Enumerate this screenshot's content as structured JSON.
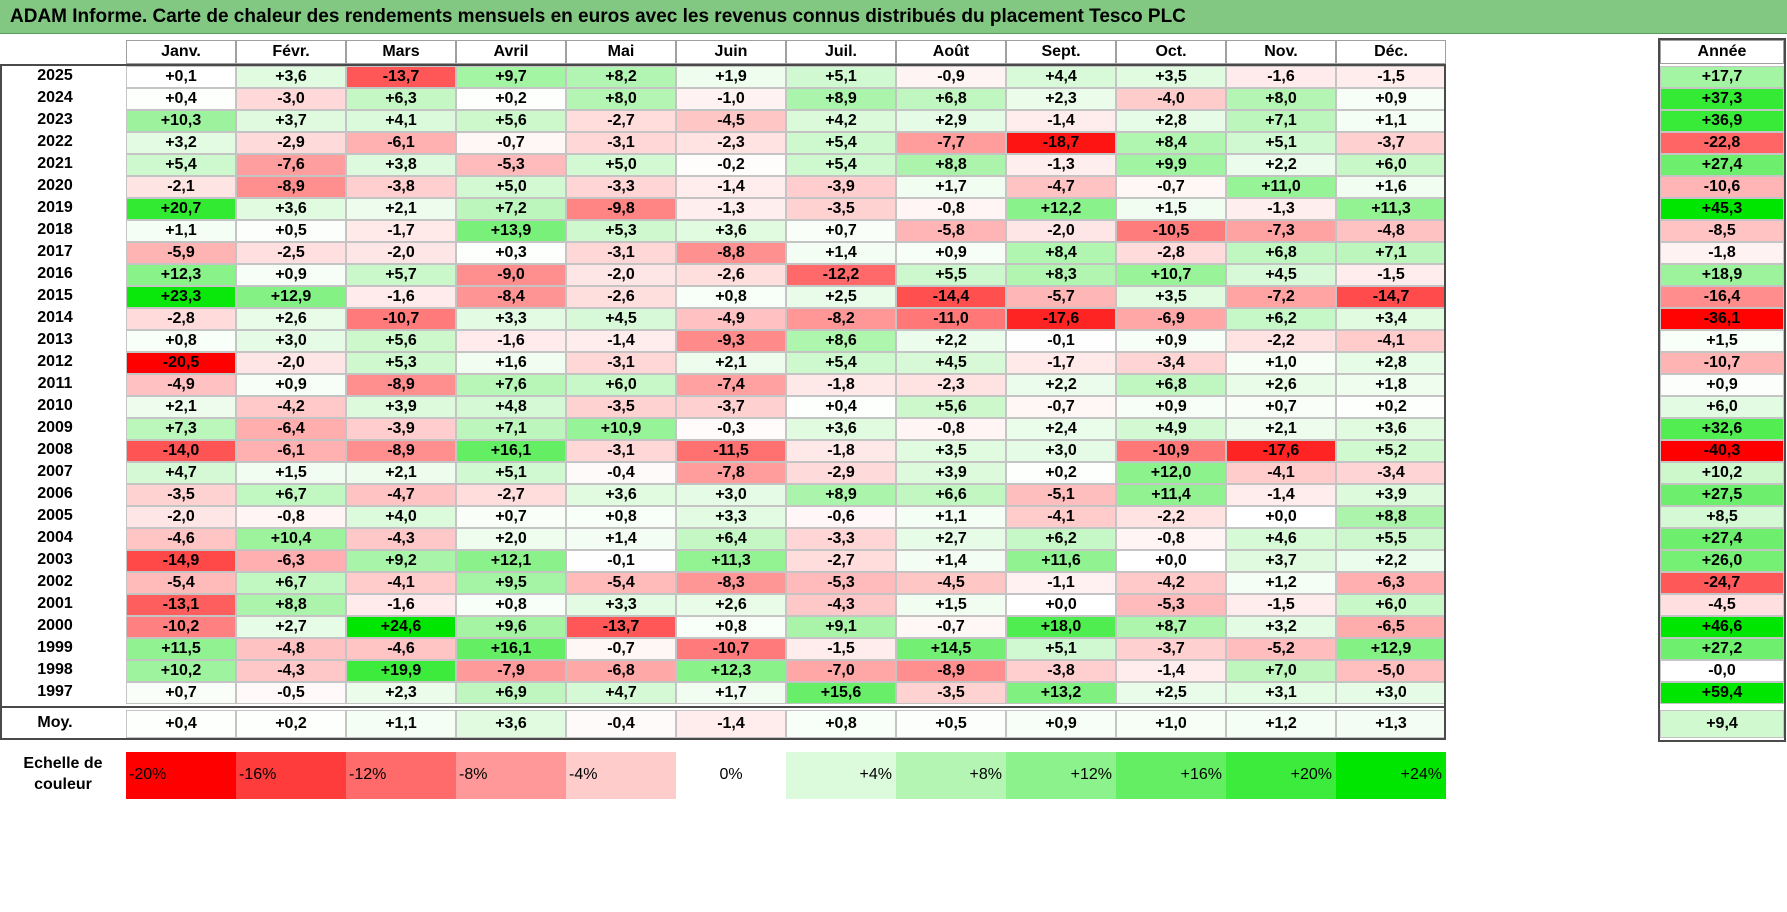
{
  "title": "ADAM Informe. Carte de chaleur des rendements mensuels en euros avec les revenus connus distribués du placement Tesco PLC",
  "chart_data": {
    "type": "heatmap",
    "title": "ADAM Informe. Carte de chaleur des rendements mensuels en euros avec les revenus connus distribués du placement Tesco PLC",
    "columns": [
      "Janv.",
      "Févr.",
      "Mars",
      "Avril",
      "Mai",
      "Juin",
      "Juil.",
      "Août",
      "Sept.",
      "Oct.",
      "Nov.",
      "Déc."
    ],
    "year_header": "Année",
    "rows": [
      {
        "year": "2025",
        "values": [
          "+0,1",
          "+3,6",
          "-13,7",
          "+9,7",
          "+8,2",
          "+1,9",
          "+5,1",
          "-0,9",
          "+4,4",
          "+3,5",
          "-1,6",
          "-1,5"
        ],
        "total": "+17,7"
      },
      {
        "year": "2024",
        "values": [
          "+0,4",
          "-3,0",
          "+6,3",
          "+0,2",
          "+8,0",
          "-1,0",
          "+8,9",
          "+6,8",
          "+2,3",
          "-4,0",
          "+8,0",
          "+0,9"
        ],
        "total": "+37,3"
      },
      {
        "year": "2023",
        "values": [
          "+10,3",
          "+3,7",
          "+4,1",
          "+5,6",
          "-2,7",
          "-4,5",
          "+4,2",
          "+2,9",
          "-1,4",
          "+2,8",
          "+7,1",
          "+1,1"
        ],
        "total": "+36,9"
      },
      {
        "year": "2022",
        "values": [
          "+3,2",
          "-2,9",
          "-6,1",
          "-0,7",
          "-3,1",
          "-2,3",
          "+5,4",
          "-7,7",
          "-18,7",
          "+8,4",
          "+5,1",
          "-3,7"
        ],
        "total": "-22,8"
      },
      {
        "year": "2021",
        "values": [
          "+5,4",
          "-7,6",
          "+3,8",
          "-5,3",
          "+5,0",
          "-0,2",
          "+5,4",
          "+8,8",
          "-1,3",
          "+9,9",
          "+2,2",
          "+6,0"
        ],
        "total": "+27,4"
      },
      {
        "year": "2020",
        "values": [
          "-2,1",
          "-8,9",
          "-3,8",
          "+5,0",
          "-3,3",
          "-1,4",
          "-3,9",
          "+1,7",
          "-4,7",
          "-0,7",
          "+11,0",
          "+1,6"
        ],
        "total": "-10,6"
      },
      {
        "year": "2019",
        "values": [
          "+20,7",
          "+3,6",
          "+2,1",
          "+7,2",
          "-9,8",
          "-1,3",
          "-3,5",
          "-0,8",
          "+12,2",
          "+1,5",
          "-1,3",
          "+11,3"
        ],
        "total": "+45,3"
      },
      {
        "year": "2018",
        "values": [
          "+1,1",
          "+0,5",
          "-1,7",
          "+13,9",
          "+5,3",
          "+3,6",
          "+0,7",
          "-5,8",
          "-2,0",
          "-10,5",
          "-7,3",
          "-4,8"
        ],
        "total": "-8,5"
      },
      {
        "year": "2017",
        "values": [
          "-5,9",
          "-2,5",
          "-2,0",
          "+0,3",
          "-3,1",
          "-8,8",
          "+1,4",
          "+0,9",
          "+8,4",
          "-2,8",
          "+6,8",
          "+7,1"
        ],
        "total": "-1,8"
      },
      {
        "year": "2016",
        "values": [
          "+12,3",
          "+0,9",
          "+5,7",
          "-9,0",
          "-2,0",
          "-2,6",
          "-12,2",
          "+5,5",
          "+8,3",
          "+10,7",
          "+4,5",
          "-1,5"
        ],
        "total": "+18,9"
      },
      {
        "year": "2015",
        "values": [
          "+23,3",
          "+12,9",
          "-1,6",
          "-8,4",
          "-2,6",
          "+0,8",
          "+2,5",
          "-14,4",
          "-5,7",
          "+3,5",
          "-7,2",
          "-14,7"
        ],
        "total": "-16,4"
      },
      {
        "year": "2014",
        "values": [
          "-2,8",
          "+2,6",
          "-10,7",
          "+3,3",
          "+4,5",
          "-4,9",
          "-8,2",
          "-11,0",
          "-17,6",
          "-6,9",
          "+6,2",
          "+3,4"
        ],
        "total": "-36,1"
      },
      {
        "year": "2013",
        "values": [
          "+0,8",
          "+3,0",
          "+5,6",
          "-1,6",
          "-1,4",
          "-9,3",
          "+8,6",
          "+2,2",
          "-0,1",
          "+0,9",
          "-2,2",
          "-4,1"
        ],
        "total": "+1,5"
      },
      {
        "year": "2012",
        "values": [
          "-20,5",
          "-2,0",
          "+5,3",
          "+1,6",
          "-3,1",
          "+2,1",
          "+5,4",
          "+4,5",
          "-1,7",
          "-3,4",
          "+1,0",
          "+2,8"
        ],
        "total": "-10,7"
      },
      {
        "year": "2011",
        "values": [
          "-4,9",
          "+0,9",
          "-8,9",
          "+7,6",
          "+6,0",
          "-7,4",
          "-1,8",
          "-2,3",
          "+2,2",
          "+6,8",
          "+2,6",
          "+1,8"
        ],
        "total": "+0,9"
      },
      {
        "year": "2010",
        "values": [
          "+2,1",
          "-4,2",
          "+3,9",
          "+4,8",
          "-3,5",
          "-3,7",
          "+0,4",
          "+5,6",
          "-0,7",
          "+0,9",
          "+0,7",
          "+0,2"
        ],
        "total": "+6,0"
      },
      {
        "year": "2009",
        "values": [
          "+7,3",
          "-6,4",
          "-3,9",
          "+7,1",
          "+10,9",
          "-0,3",
          "+3,6",
          "-0,8",
          "+2,4",
          "+4,9",
          "+2,1",
          "+3,6"
        ],
        "total": "+32,6"
      },
      {
        "year": "2008",
        "values": [
          "-14,0",
          "-6,1",
          "-8,9",
          "+16,1",
          "-3,1",
          "-11,5",
          "-1,8",
          "+3,5",
          "+3,0",
          "-10,9",
          "-17,6",
          "+5,2"
        ],
        "total": "-40,3"
      },
      {
        "year": "2007",
        "values": [
          "+4,7",
          "+1,5",
          "+2,1",
          "+5,1",
          "-0,4",
          "-7,8",
          "-2,9",
          "+3,9",
          "+0,2",
          "+12,0",
          "-4,1",
          "-3,4"
        ],
        "total": "+10,2"
      },
      {
        "year": "2006",
        "values": [
          "-3,5",
          "+6,7",
          "-4,7",
          "-2,7",
          "+3,6",
          "+3,0",
          "+8,9",
          "+6,6",
          "-5,1",
          "+11,4",
          "-1,4",
          "+3,9"
        ],
        "total": "+27,5"
      },
      {
        "year": "2005",
        "values": [
          "-2,0",
          "-0,8",
          "+4,0",
          "+0,7",
          "+0,8",
          "+3,3",
          "-0,6",
          "+1,1",
          "-4,1",
          "-2,2",
          "+0,0",
          "+8,8"
        ],
        "total": "+8,5"
      },
      {
        "year": "2004",
        "values": [
          "-4,6",
          "+10,4",
          "-4,3",
          "+2,0",
          "+1,4",
          "+6,4",
          "-3,3",
          "+2,7",
          "+6,2",
          "-0,8",
          "+4,6",
          "+5,5"
        ],
        "total": "+27,4"
      },
      {
        "year": "2003",
        "values": [
          "-14,9",
          "-6,3",
          "+9,2",
          "+12,1",
          "-0,1",
          "+11,3",
          "-2,7",
          "+1,4",
          "+11,6",
          "+0,0",
          "+3,7",
          "+2,2"
        ],
        "total": "+26,0"
      },
      {
        "year": "2002",
        "values": [
          "-5,4",
          "+6,7",
          "-4,1",
          "+9,5",
          "-5,4",
          "-8,3",
          "-5,3",
          "-4,5",
          "-1,1",
          "-4,2",
          "+1,2",
          "-6,3"
        ],
        "total": "-24,7"
      },
      {
        "year": "2001",
        "values": [
          "-13,1",
          "+8,8",
          "-1,6",
          "+0,8",
          "+3,3",
          "+2,6",
          "-4,3",
          "+1,5",
          "+0,0",
          "-5,3",
          "-1,5",
          "+6,0"
        ],
        "total": "-4,5"
      },
      {
        "year": "2000",
        "values": [
          "-10,2",
          "+2,7",
          "+24,6",
          "+9,6",
          "-13,7",
          "+0,8",
          "+9,1",
          "-0,7",
          "+18,0",
          "+8,7",
          "+3,2",
          "-6,5"
        ],
        "total": "+46,6"
      },
      {
        "year": "1999",
        "values": [
          "+11,5",
          "-4,8",
          "-4,6",
          "+16,1",
          "-0,7",
          "-10,7",
          "-1,5",
          "+14,5",
          "+5,1",
          "-3,7",
          "-5,2",
          "+12,9"
        ],
        "total": "+27,2"
      },
      {
        "year": "1998",
        "values": [
          "+10,2",
          "-4,3",
          "+19,9",
          "-7,9",
          "-6,8",
          "+12,3",
          "-7,0",
          "-8,9",
          "-3,8",
          "-1,4",
          "+7,0",
          "-5,0"
        ],
        "total": "-0,0"
      },
      {
        "year": "1997",
        "values": [
          "+0,7",
          "-0,5",
          "+2,3",
          "+6,9",
          "+4,7",
          "+1,7",
          "+15,6",
          "-3,5",
          "+13,2",
          "+2,5",
          "+3,1",
          "+3,0"
        ],
        "total": "+59,4"
      }
    ],
    "average": {
      "label": "Moy.",
      "values": [
        "+0,4",
        "+0,2",
        "+1,1",
        "+3,6",
        "-0,4",
        "-1,4",
        "+0,8",
        "+0,5",
        "+0,9",
        "+1,0",
        "+1,2",
        "+1,3"
      ],
      "total": "+9,4"
    },
    "legend": {
      "title_line1": "Echelle de",
      "title_line2": "couleur",
      "items": [
        {
          "label": "-20%",
          "value": -20,
          "color": "#ff0000"
        },
        {
          "label": "-16%",
          "value": -16,
          "color": "#ff3c3c"
        },
        {
          "label": "-12%",
          "value": -12,
          "color": "#ff6b6b"
        },
        {
          "label": "-8%",
          "value": -8,
          "color": "#ff9999"
        },
        {
          "label": "-4%",
          "value": -4,
          "color": "#ffcccc"
        },
        {
          "label": "0%",
          "value": 0,
          "color": "#ffffff"
        },
        {
          "label": "+4%",
          "value": 4,
          "color": "#dcfadc"
        },
        {
          "label": "+8%",
          "value": 8,
          "color": "#b4f5b4"
        },
        {
          "label": "+12%",
          "value": 12,
          "color": "#8cf28c"
        },
        {
          "label": "+16%",
          "value": 16,
          "color": "#64ee64"
        },
        {
          "label": "+20%",
          "value": 20,
          "color": "#3ceb3c"
        },
        {
          "label": "+24%",
          "value": 24,
          "color": "#00e600"
        }
      ]
    }
  }
}
